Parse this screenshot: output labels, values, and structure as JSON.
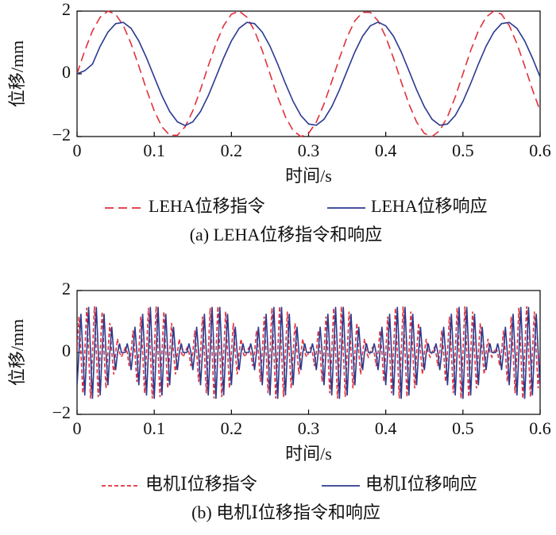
{
  "chart_data": [
    {
      "type": "line",
      "xlabel": "时间/s",
      "ylabel": "位移/mm",
      "caption": "(a) LEHA位移指令和响应",
      "xlim": [
        0,
        0.6
      ],
      "ylim": [
        -2,
        2
      ],
      "xticks": [
        0,
        0.1,
        0.2,
        0.3,
        0.4,
        0.5,
        0.6
      ],
      "yticks": [
        {
          "value": -2,
          "label": "−2"
        },
        0,
        2
      ],
      "x": [
        0,
        0.01,
        0.02,
        0.03,
        0.04,
        0.05,
        0.06,
        0.07,
        0.08,
        0.09,
        0.1,
        0.11,
        0.12,
        0.13,
        0.14,
        0.15,
        0.16,
        0.17,
        0.18,
        0.19,
        0.2,
        0.21,
        0.22,
        0.23,
        0.24,
        0.25,
        0.26,
        0.27,
        0.28,
        0.29,
        0.3,
        0.31,
        0.32,
        0.33,
        0.34,
        0.35,
        0.36,
        0.37,
        0.38,
        0.39,
        0.4,
        0.41,
        0.42,
        0.43,
        0.44,
        0.45,
        0.46,
        0.47,
        0.48,
        0.49,
        0.5,
        0.51,
        0.52,
        0.53,
        0.54,
        0.55,
        0.56,
        0.57,
        0.58,
        0.59,
        0.6
      ],
      "series": [
        {
          "name": "LEHA位移指令",
          "color": "#e0313b",
          "dash": true,
          "values": [
            0,
            0.74,
            1.37,
            1.81,
            2.0,
            1.9,
            1.54,
            0.96,
            0.25,
            -0.5,
            -1.18,
            -1.69,
            -1.96,
            -1.96,
            -1.69,
            -1.18,
            -0.5,
            0.25,
            0.96,
            1.54,
            1.9,
            2.0,
            1.81,
            1.37,
            0.74,
            0,
            -0.74,
            -1.37,
            -1.81,
            -2.0,
            -1.9,
            -1.54,
            -0.96,
            -0.25,
            0.5,
            1.18,
            1.69,
            1.96,
            1.96,
            1.69,
            1.18,
            0.5,
            -0.25,
            -0.96,
            -1.54,
            -1.9,
            -2.0,
            -1.81,
            -1.37,
            -0.74,
            0,
            0.74,
            1.37,
            1.81,
            2.0,
            1.9,
            1.54,
            0.96,
            0.25,
            -0.5,
            -1.18
          ]
        },
        {
          "name": "LEHA位移响应",
          "color": "#2b3a8f",
          "dash": false,
          "values": [
            0,
            0.1,
            0.31,
            0.88,
            1.33,
            1.6,
            1.64,
            1.45,
            1.05,
            0.51,
            -0.1,
            -0.7,
            -1.2,
            -1.53,
            -1.65,
            -1.53,
            -1.2,
            -0.7,
            -0.1,
            0.51,
            1.05,
            1.45,
            1.64,
            1.6,
            1.33,
            0.88,
            0.31,
            -0.31,
            -0.88,
            -1.33,
            -1.6,
            -1.64,
            -1.45,
            -1.05,
            -0.51,
            0.1,
            0.7,
            1.2,
            1.53,
            1.65,
            1.53,
            1.2,
            0.7,
            0.1,
            -0.51,
            -1.05,
            -1.45,
            -1.64,
            -1.6,
            -1.33,
            -0.88,
            -0.31,
            0.31,
            0.88,
            1.33,
            1.6,
            1.64,
            1.45,
            1.05,
            0.51,
            -0.1
          ]
        }
      ]
    },
    {
      "type": "line",
      "xlabel": "时间/s",
      "ylabel": "位移/mm",
      "caption": "(b) 电机Ⅰ位移指令和响应",
      "xlim": [
        0,
        0.6
      ],
      "ylim": [
        -2,
        2
      ],
      "xticks": [
        0,
        0.1,
        0.2,
        0.3,
        0.4,
        0.5,
        0.6
      ],
      "yticks": [
        {
          "value": -2,
          "label": "−2"
        },
        0,
        2
      ],
      "x": [
        0,
        0.0025,
        0.005,
        0.0075,
        0.01,
        0.0125,
        0.015,
        0.0175,
        0.02,
        0.0225,
        0.025,
        0.0275,
        0.03,
        0.0325,
        0.035,
        0.0375,
        0.04,
        0.0425,
        0.045,
        0.0475,
        0.05,
        0.0525,
        0.055,
        0.0575,
        0.06,
        0.0625,
        0.065,
        0.0675,
        0.07,
        0.0725,
        0.075,
        0.0775,
        0.08,
        0.0825,
        0.085,
        0.0875,
        0.09,
        0.0925,
        0.095,
        0.0975,
        0.1,
        0.1025,
        0.105,
        0.1075,
        0.11,
        0.1125,
        0.115,
        0.1175,
        0.12,
        0.1225,
        0.125,
        0.1275,
        0.13,
        0.1325,
        0.135,
        0.1375,
        0.14,
        0.1425,
        0.145,
        0.1475,
        0.15,
        0.1525,
        0.155,
        0.1575,
        0.16,
        0.1625,
        0.165,
        0.1675,
        0.17,
        0.1725,
        0.175,
        0.1775,
        0.18,
        0.1825,
        0.185,
        0.1875,
        0.19,
        0.1925,
        0.195,
        0.1975,
        0.2,
        0.2025,
        0.205,
        0.2075,
        0.21,
        0.2125,
        0.215,
        0.2175,
        0.22,
        0.2225,
        0.225,
        0.2275,
        0.23,
        0.2325,
        0.235,
        0.2375,
        0.24,
        0.2425,
        0.245,
        0.2475,
        0.25,
        0.2525,
        0.255,
        0.2575,
        0.26,
        0.2625,
        0.265,
        0.2675,
        0.27,
        0.2725,
        0.275,
        0.2775,
        0.28,
        0.2825,
        0.285,
        0.2875,
        0.29,
        0.2925,
        0.295,
        0.2975,
        0.3,
        0.3025,
        0.305,
        0.3075,
        0.31,
        0.3125,
        0.315,
        0.3175,
        0.32,
        0.3225,
        0.325,
        0.3275,
        0.33,
        0.3325,
        0.335,
        0.3375,
        0.34,
        0.3425,
        0.345,
        0.3475,
        0.35,
        0.3525,
        0.355,
        0.3575,
        0.36,
        0.3625,
        0.365,
        0.3675,
        0.37,
        0.3725,
        0.375,
        0.3775,
        0.38,
        0.3825,
        0.385,
        0.3875,
        0.39,
        0.3925,
        0.395,
        0.3975,
        0.4,
        0.4025,
        0.405,
        0.4075,
        0.41,
        0.4125,
        0.415,
        0.4175,
        0.42,
        0.4225,
        0.425,
        0.4275,
        0.43,
        0.4325,
        0.435,
        0.4375,
        0.44,
        0.4425,
        0.445,
        0.4475,
        0.45,
        0.4525,
        0.455,
        0.4575,
        0.46,
        0.4625,
        0.465,
        0.4675,
        0.47,
        0.4725,
        0.475,
        0.4775,
        0.48,
        0.4825,
        0.485,
        0.4875,
        0.49,
        0.4925,
        0.495,
        0.4975,
        0.5,
        0.5025,
        0.505,
        0.5075,
        0.51,
        0.5125,
        0.515,
        0.5175,
        0.52,
        0.5225,
        0.525,
        0.5275,
        0.53,
        0.5325,
        0.535,
        0.5375,
        0.54,
        0.5425,
        0.545,
        0.5475,
        0.55,
        0.5525,
        0.555,
        0.5575,
        0.56,
        0.5625,
        0.565,
        0.5675,
        0.57,
        0.5725,
        0.575,
        0.5775,
        0.58,
        0.5825,
        0.585,
        0.5875,
        0.59,
        0.5925,
        0.595,
        0.5975,
        0.6
      ],
      "series": [
        {
          "name": "电机Ⅰ位移指令",
          "color": "#e0313b",
          "dash": true,
          "values": [
            0,
            1.16,
            0,
            -1.32,
            0,
            1.44,
            0,
            -1.49,
            0,
            1.49,
            0,
            -1.44,
            0,
            1.32,
            0,
            -1.16,
            0,
            0.95,
            0,
            -0.71,
            0,
            0.44,
            0,
            -0.15,
            0,
            0.15,
            0,
            -0.44,
            0,
            0.71,
            0,
            -0.95,
            0,
            1.16,
            0,
            -1.32,
            0,
            1.44,
            0,
            -1.49,
            0,
            1.49,
            0,
            -1.44,
            0,
            1.32,
            0,
            -1.16,
            0,
            0.95,
            0,
            -0.71,
            0,
            0.44,
            0,
            -0.15,
            0,
            0.15,
            0,
            -0.44,
            0,
            0.71,
            0,
            -0.95,
            0,
            1.16,
            0,
            -1.32,
            0,
            1.44,
            0,
            -1.49,
            0,
            1.49,
            0,
            -1.44,
            0,
            1.32,
            0,
            -1.16,
            0,
            0.95,
            0,
            -0.71,
            0,
            0.44,
            0,
            -0.15,
            0,
            0.15,
            0,
            -0.44,
            0,
            0.71,
            0,
            -0.95,
            0,
            1.16,
            0,
            -1.32,
            0,
            1.44,
            0,
            -1.49,
            0,
            1.49,
            0,
            -1.44,
            0,
            1.32,
            0,
            -1.16,
            0,
            0.95,
            0,
            -0.71,
            0,
            0.44,
            0,
            -0.15,
            0,
            0.15,
            0,
            -0.44,
            0,
            0.71,
            0,
            -0.95,
            0,
            1.16,
            0,
            -1.32,
            0,
            1.44,
            0,
            -1.49,
            0,
            1.49,
            0,
            -1.44,
            0,
            1.32,
            0,
            -1.16,
            0,
            0.95,
            0,
            -0.71,
            0,
            0.44,
            0,
            -0.15,
            0,
            0.15,
            0,
            -0.44,
            0,
            0.71,
            0,
            -0.95,
            0,
            1.16,
            0,
            -1.32,
            0,
            1.44,
            0,
            -1.49,
            0,
            1.49,
            0,
            -1.44,
            0,
            1.32,
            0,
            -1.16,
            0,
            0.95,
            0,
            -0.71,
            0,
            0.44,
            0,
            -0.15,
            0,
            0.15,
            0,
            -0.44,
            0,
            0.71,
            0,
            -0.95,
            0,
            1.16,
            0,
            -1.32,
            0,
            1.44,
            0,
            -1.49,
            0,
            1.49,
            0,
            -1.44,
            0,
            1.32,
            0,
            -1.16,
            0,
            0.95,
            0,
            -0.71,
            0,
            0.44,
            0,
            -0.15,
            0,
            0.15,
            0,
            -0.44,
            0,
            0.71,
            0,
            -0.95,
            0,
            1.16,
            0,
            -1.32,
            0,
            1.44,
            0,
            -1.49,
            0,
            1.49,
            0,
            -1.44,
            0,
            1.32,
            0,
            -1.16,
            0
          ]
        },
        {
          "name": "电机Ⅰ位移响应",
          "color": "#2b3a8f",
          "dash": false,
          "values": [
            -1.06,
            0,
            1.25,
            0,
            -1.39,
            0,
            1.47,
            0,
            -1.5,
            0,
            1.47,
            0,
            -1.39,
            0,
            1.25,
            0,
            -1.06,
            0,
            0.83,
            0,
            -0.57,
            0,
            0.29,
            0,
            0,
            0,
            0.29,
            0,
            -0.57,
            0,
            0.83,
            0,
            -1.06,
            0,
            1.25,
            0,
            -1.39,
            0,
            1.47,
            0,
            -1.5,
            0,
            1.47,
            0,
            -1.39,
            0,
            1.25,
            0,
            -1.06,
            0,
            0.83,
            0,
            -0.57,
            0,
            0.29,
            0,
            0,
            0,
            0.29,
            0,
            -0.57,
            0,
            0.83,
            0,
            -1.06,
            0,
            1.25,
            0,
            -1.39,
            0,
            1.47,
            0,
            -1.5,
            0,
            1.47,
            0,
            -1.39,
            0,
            1.25,
            0,
            -1.06,
            0,
            0.83,
            0,
            -0.57,
            0,
            0.29,
            0,
            0,
            0,
            0.29,
            0,
            -0.57,
            0,
            0.83,
            0,
            -1.06,
            0,
            1.25,
            0,
            -1.39,
            0,
            1.47,
            0,
            -1.5,
            0,
            1.47,
            0,
            -1.39,
            0,
            1.25,
            0,
            -1.06,
            0,
            0.83,
            0,
            -0.57,
            0,
            0.29,
            0,
            0,
            0,
            0.29,
            0,
            -0.57,
            0,
            0.83,
            0,
            -1.06,
            0,
            1.25,
            0,
            -1.39,
            0,
            1.47,
            0,
            -1.5,
            0,
            1.47,
            0,
            -1.39,
            0,
            1.25,
            0,
            -1.06,
            0,
            0.83,
            0,
            -0.57,
            0,
            0.29,
            0,
            0,
            0,
            0.29,
            0,
            -0.57,
            0,
            0.83,
            0,
            -1.06,
            0,
            1.25,
            0,
            -1.39,
            0,
            1.47,
            0,
            -1.5,
            0,
            1.47,
            0,
            -1.39,
            0,
            1.25,
            0,
            -1.06,
            0,
            0.83,
            0,
            -0.57,
            0,
            0.29,
            0,
            0,
            0,
            0.29,
            0,
            -0.57,
            0,
            0.83,
            0,
            -1.06,
            0,
            1.25,
            0,
            -1.39,
            0,
            1.47,
            0,
            -1.5,
            0,
            1.47,
            0,
            -1.39,
            0,
            1.25,
            0,
            -1.06,
            0,
            0.83,
            0,
            -0.57,
            0,
            0.29,
            0,
            0,
            0,
            0.29,
            0,
            -0.57,
            0,
            0.83,
            0,
            -1.06,
            0,
            1.25,
            0,
            -1.39,
            0,
            1.47,
            0,
            -1.5,
            0,
            1.47,
            0,
            -1.39,
            0,
            1.25,
            0,
            -1.06
          ]
        }
      ]
    }
  ]
}
